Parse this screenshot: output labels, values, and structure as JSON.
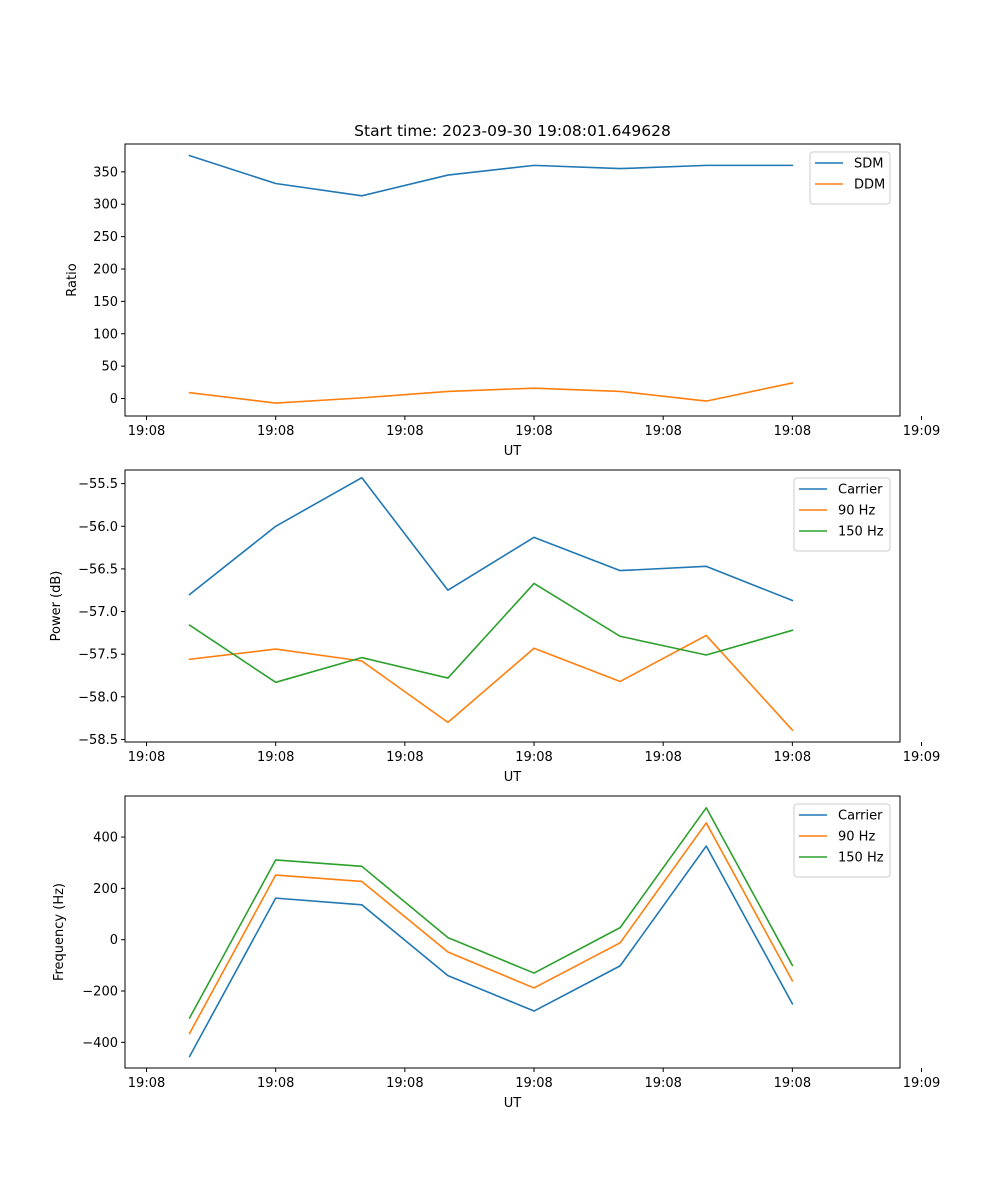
{
  "figure_title": "Start time: 2023-09-30 19:08:01.649628",
  "chart_data": [
    {
      "type": "line",
      "title": "Start time: 2023-09-30 19:08:01.649628",
      "xlabel": "UT",
      "ylabel": "Ratio",
      "x": [
        1,
        2,
        3,
        4,
        5,
        6,
        7,
        8
      ],
      "xlim": [
        0.25,
        9.25
      ],
      "xticks": [
        0.5,
        2,
        3.5,
        5,
        6.5,
        8,
        9.5
      ],
      "xtick_labels": [
        "19:08",
        "19:08",
        "19:08",
        "19:08",
        "19:08",
        "19:08",
        "19:09"
      ],
      "ylim": [
        -27,
        393
      ],
      "yticks": [
        0,
        50,
        100,
        150,
        200,
        250,
        300,
        350
      ],
      "ytick_labels": [
        "0",
        "50",
        "100",
        "150",
        "200",
        "250",
        "300",
        "350"
      ],
      "legend": "upper right",
      "series": [
        {
          "name": "SDM",
          "color": "#1f77b4",
          "values": [
            375,
            332,
            313,
            345,
            360,
            355,
            360,
            360
          ]
        },
        {
          "name": "DDM",
          "color": "#ff7f0e",
          "values": [
            9,
            -7,
            1,
            11,
            16,
            11,
            -4,
            24
          ]
        }
      ]
    },
    {
      "type": "line",
      "title": "",
      "xlabel": "UT",
      "ylabel": "Power (dB)",
      "x": [
        1,
        2,
        3,
        4,
        5,
        6,
        7,
        8
      ],
      "xlim": [
        0.25,
        9.25
      ],
      "xticks": [
        0.5,
        2,
        3.5,
        5,
        6.5,
        8,
        9.5
      ],
      "xtick_labels": [
        "19:08",
        "19:08",
        "19:08",
        "19:08",
        "19:08",
        "19:08",
        "19:09"
      ],
      "ylim": [
        -58.53,
        -55.34
      ],
      "yticks": [
        -55.5,
        -56.0,
        -56.5,
        -57.0,
        -57.5,
        -58.0,
        -58.5
      ],
      "ytick_labels": [
        "−55.5",
        "−56.0",
        "−56.5",
        "−57.0",
        "−57.5",
        "−58.0",
        "−58.5"
      ],
      "legend": "upper right",
      "series": [
        {
          "name": "Carrier",
          "color": "#1f77b4",
          "values": [
            -56.8,
            -56.0,
            -55.43,
            -56.75,
            -56.13,
            -56.52,
            -56.47,
            -56.87
          ]
        },
        {
          "name": "90 Hz",
          "color": "#ff7f0e",
          "values": [
            -57.56,
            -57.44,
            -57.58,
            -58.3,
            -57.43,
            -57.82,
            -57.28,
            -58.39
          ]
        },
        {
          "name": "150 Hz",
          "color": "#2ca02c",
          "values": [
            -57.16,
            -57.83,
            -57.54,
            -57.78,
            -56.67,
            -57.29,
            -57.51,
            -57.22
          ]
        }
      ]
    },
    {
      "type": "line",
      "title": "",
      "xlabel": "UT",
      "ylabel": "Frequency (Hz)",
      "x": [
        1,
        2,
        3,
        4,
        5,
        6,
        7,
        8
      ],
      "xlim": [
        0.25,
        9.25
      ],
      "xticks": [
        0.5,
        2,
        3.5,
        5,
        6.5,
        8,
        9.5
      ],
      "xtick_labels": [
        "19:08",
        "19:08",
        "19:08",
        "19:08",
        "19:08",
        "19:08",
        "19:09"
      ],
      "ylim": [
        -500,
        560
      ],
      "yticks": [
        400,
        200,
        0,
        -200,
        -400
      ],
      "ytick_labels": [
        "400",
        "200",
        "0",
        "−200",
        "−400"
      ],
      "legend": "upper right",
      "series": [
        {
          "name": "Carrier",
          "color": "#1f77b4",
          "values": [
            -455,
            162,
            136,
            -140,
            -278,
            -102,
            365,
            -250
          ]
        },
        {
          "name": "90 Hz",
          "color": "#ff7f0e",
          "values": [
            -365,
            252,
            227,
            -48,
            -188,
            -12,
            455,
            -160
          ]
        },
        {
          "name": "150 Hz",
          "color": "#2ca02c",
          "values": [
            -305,
            311,
            286,
            8,
            -130,
            47,
            514,
            -100
          ]
        }
      ]
    }
  ]
}
